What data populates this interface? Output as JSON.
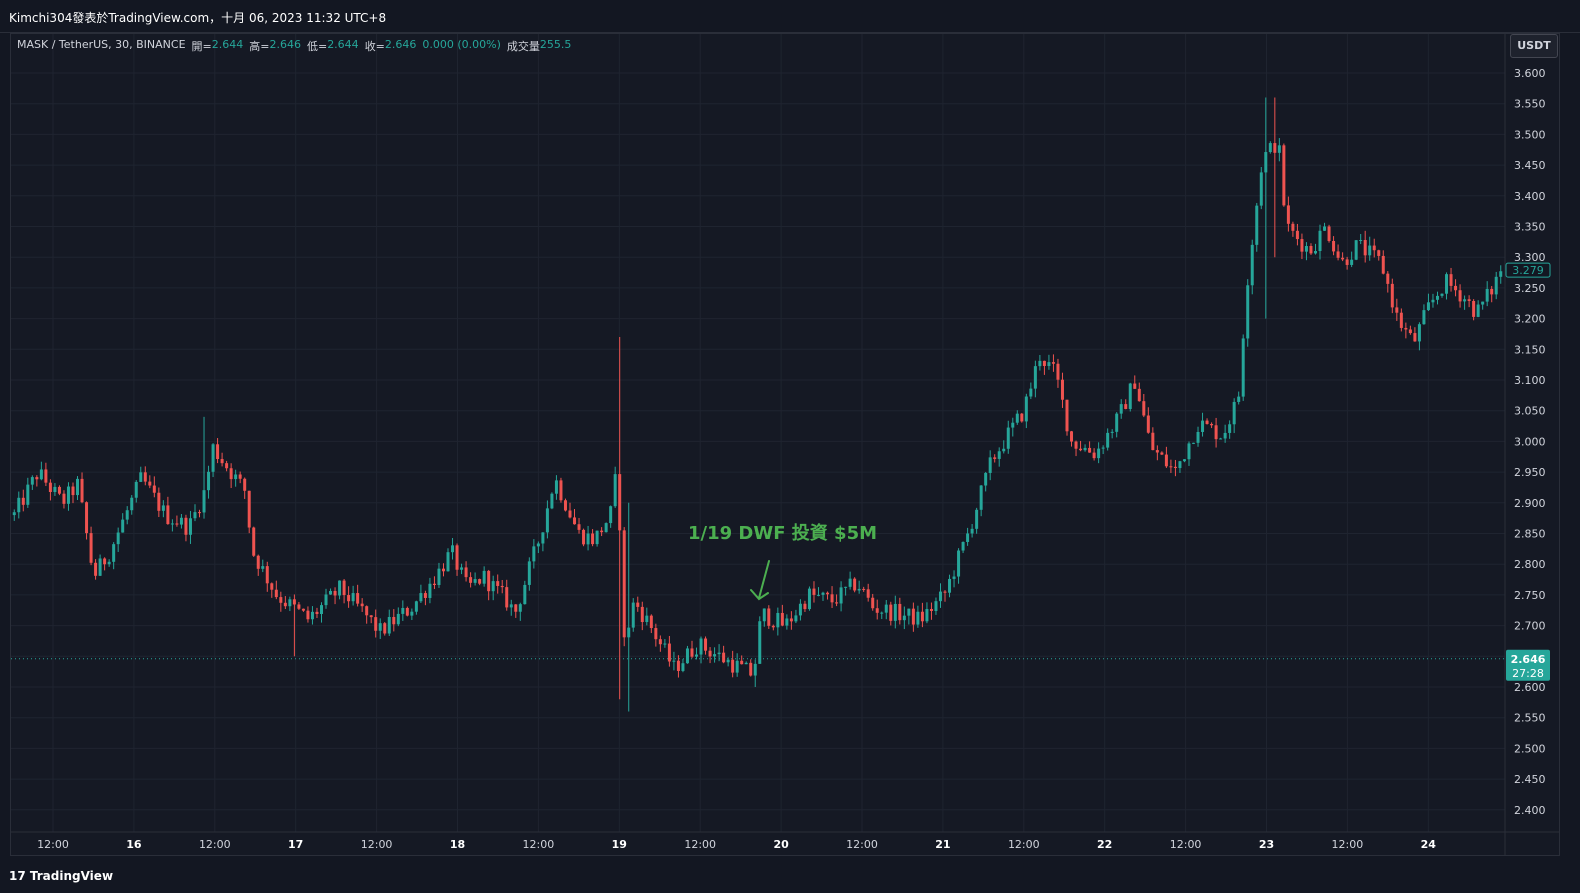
{
  "header": {
    "publisher_line": "Kimchi304發表於TradingView.com，十月 06, 2023 11:32 UTC+8"
  },
  "legend": {
    "symbol": "MASK / TetherUS, 30, BINANCE",
    "open_label": "開=",
    "open_value": "2.644",
    "high_label": "高=",
    "high_value": "2.646",
    "low_label": "低=",
    "low_value": "2.644",
    "close_label": "收=",
    "close_value": "2.646",
    "change_value": "0.000 (0.00%)",
    "volume_label": "成交量",
    "volume_value": "255.5"
  },
  "unit_badge": "USDT",
  "annotation": "1/19 DWF 投資 $5M",
  "footer": {
    "brand": "TradingView"
  },
  "colors": {
    "background": "#131722",
    "up": "#26a69a",
    "down": "#ef5350",
    "grid": "#1f2430",
    "annotation": "#4caf50"
  },
  "chart_data": {
    "type": "candlestick",
    "ylim": [
      2.35,
      3.625
    ],
    "y_ticks": [
      "3.600",
      "3.550",
      "3.500",
      "3.450",
      "3.400",
      "3.350",
      "3.300",
      "3.250",
      "3.200",
      "3.150",
      "3.100",
      "3.050",
      "3.000",
      "2.950",
      "2.900",
      "2.850",
      "2.800",
      "2.750",
      "2.700",
      "2.650",
      "2.600",
      "2.550",
      "2.500",
      "2.450",
      "2.400"
    ],
    "x_ticks": [
      {
        "label": "12:00",
        "day": false
      },
      {
        "label": "16",
        "day": true
      },
      {
        "label": "12:00",
        "day": false
      },
      {
        "label": "17",
        "day": true
      },
      {
        "label": "12:00",
        "day": false
      },
      {
        "label": "18",
        "day": true
      },
      {
        "label": "12:00",
        "day": false
      },
      {
        "label": "19",
        "day": true
      },
      {
        "label": "12:00",
        "day": false
      },
      {
        "label": "20",
        "day": true
      },
      {
        "label": "12:00",
        "day": false
      },
      {
        "label": "21",
        "day": true
      },
      {
        "label": "12:00",
        "day": false
      },
      {
        "label": "22",
        "day": true
      },
      {
        "label": "12:00",
        "day": false
      },
      {
        "label": "23",
        "day": true
      },
      {
        "label": "12:00",
        "day": false
      },
      {
        "label": "24",
        "day": true
      }
    ],
    "current_price": "2.646",
    "countdown": "27:28",
    "last_close": "3.279",
    "price_path": [
      [
        0,
        2.88
      ],
      [
        3,
        2.95
      ],
      [
        6,
        2.9
      ],
      [
        8,
        2.93
      ],
      [
        10,
        2.78
      ],
      [
        12,
        2.82
      ],
      [
        16,
        2.94
      ],
      [
        19,
        2.88
      ],
      [
        22,
        2.86
      ],
      [
        24,
        2.92
      ],
      [
        25,
        2.99
      ],
      [
        29,
        2.92
      ],
      [
        30,
        2.82
      ],
      [
        33,
        2.75
      ],
      [
        37,
        2.71
      ],
      [
        41,
        2.76
      ],
      [
        44,
        2.72
      ],
      [
        46,
        2.69
      ],
      [
        50,
        2.73
      ],
      [
        53,
        2.78
      ],
      [
        55,
        2.82
      ],
      [
        57,
        2.76
      ],
      [
        59,
        2.78
      ],
      [
        62,
        2.74
      ],
      [
        63,
        2.72
      ],
      [
        66,
        2.84
      ],
      [
        68,
        2.94
      ],
      [
        71,
        2.85
      ],
      [
        73,
        2.84
      ],
      [
        75,
        2.88
      ],
      [
        76,
        2.97
      ],
      [
        76.5,
        2.66
      ],
      [
        78,
        2.74
      ],
      [
        80,
        2.7
      ],
      [
        83,
        2.63
      ],
      [
        86,
        2.67
      ],
      [
        90,
        2.64
      ],
      [
        93,
        2.62
      ],
      [
        94,
        2.72
      ],
      [
        97,
        2.7
      ],
      [
        100,
        2.75
      ],
      [
        103,
        2.74
      ],
      [
        106,
        2.77
      ],
      [
        108,
        2.73
      ],
      [
        111,
        2.72
      ],
      [
        114,
        2.71
      ],
      [
        117,
        2.75
      ],
      [
        120,
        2.85
      ],
      [
        123,
        2.97
      ],
      [
        125,
        3.01
      ],
      [
        127,
        3.05
      ],
      [
        129,
        3.14
      ],
      [
        131,
        3.11
      ],
      [
        133,
        3.0
      ],
      [
        136,
        2.98
      ],
      [
        139,
        3.04
      ],
      [
        141,
        3.1
      ],
      [
        143,
        2.99
      ],
      [
        146,
        2.95
      ],
      [
        149,
        3.03
      ],
      [
        152,
        3.01
      ],
      [
        154,
        3.07
      ],
      [
        155,
        3.25
      ],
      [
        157,
        3.46
      ],
      [
        159,
        3.49
      ],
      [
        160,
        3.35
      ],
      [
        163,
        3.31
      ],
      [
        165,
        3.35
      ],
      [
        167,
        3.29
      ],
      [
        169,
        3.32
      ],
      [
        172,
        3.29
      ],
      [
        174,
        3.2
      ],
      [
        176,
        3.16
      ],
      [
        178,
        3.22
      ],
      [
        180,
        3.26
      ],
      [
        182,
        3.24
      ],
      [
        184,
        3.21
      ],
      [
        186,
        3.25
      ],
      [
        187,
        3.28
      ]
    ],
    "spikes": [
      {
        "i": 76,
        "high": 3.17,
        "low": 2.58
      },
      {
        "i": 77,
        "high": 2.9,
        "low": 2.56
      },
      {
        "i": 157,
        "high": 3.56,
        "low": 3.2
      },
      {
        "i": 158,
        "high": 3.56,
        "low": 3.3
      },
      {
        "i": 24,
        "high": 3.04,
        "low": 2.88
      },
      {
        "i": 93,
        "high": 2.63,
        "low": 2.6
      },
      {
        "i": 35,
        "high": 2.72,
        "low": 2.65
      }
    ]
  }
}
